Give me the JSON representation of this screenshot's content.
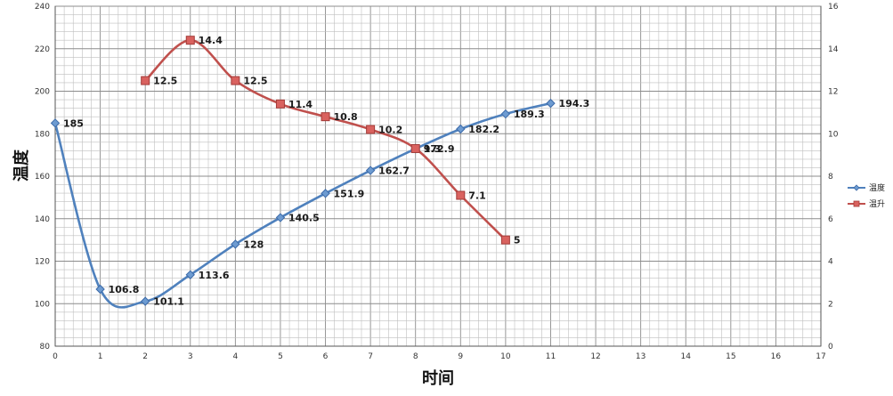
{
  "chart_data": {
    "type": "line",
    "xlabel": "时间",
    "ylabel": "温度",
    "xlim": [
      0,
      17
    ],
    "ylim": [
      80,
      240
    ],
    "y2lim": [
      0,
      16
    ],
    "x_ticks": [
      0,
      1,
      2,
      3,
      4,
      5,
      6,
      7,
      8,
      9,
      10,
      11,
      12,
      13,
      14,
      15,
      16,
      17
    ],
    "y_ticks": [
      80,
      100,
      120,
      140,
      160,
      180,
      200,
      220,
      240
    ],
    "y2_ticks": [
      0,
      2,
      4,
      6,
      8,
      10,
      12,
      14,
      16
    ],
    "grid": true,
    "minor_grid": true,
    "legend_position": "right",
    "series": [
      {
        "name": "温度",
        "axis": "left",
        "color": "#4f81bd",
        "marker": "diamond",
        "x": [
          0,
          1,
          2,
          3,
          4,
          5,
          6,
          7,
          8,
          9,
          10,
          11
        ],
        "values": [
          185,
          106.8,
          101.1,
          113.6,
          128,
          140.5,
          151.9,
          162.7,
          172.9,
          182.2,
          189.3,
          194.3
        ],
        "labels": [
          "185",
          "106.8",
          "101.1",
          "113.6",
          "128",
          "140.5",
          "151.9",
          "162.7",
          "172.9",
          "182.2",
          "189.3",
          "194.3"
        ]
      },
      {
        "name": "温升",
        "axis": "right",
        "color": "#c0504d",
        "marker": "square",
        "x": [
          2,
          3,
          4,
          5,
          6,
          7,
          8,
          9,
          10
        ],
        "values": [
          12.5,
          14.4,
          12.5,
          11.4,
          10.8,
          10.2,
          9.3,
          7.1,
          5
        ],
        "labels": [
          "12.5",
          "14.4",
          "12.5",
          "11.4",
          "10.8",
          "10.2",
          "9.3",
          "7.1",
          "5"
        ]
      }
    ]
  }
}
